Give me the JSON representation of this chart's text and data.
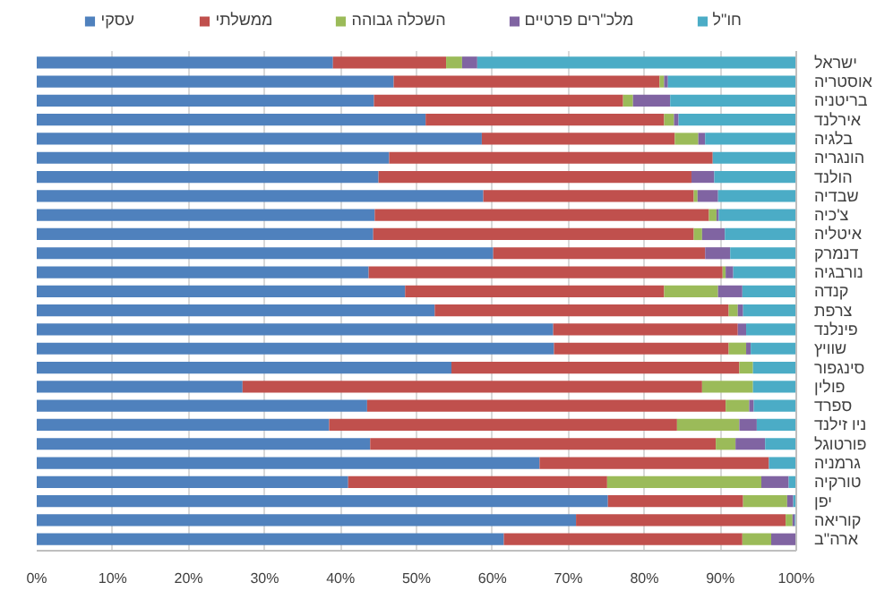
{
  "chart_data": {
    "type": "bar",
    "orientation": "horizontal",
    "stacked": true,
    "categories": [
      "ישראל",
      "אוסטריה",
      "בריטניה",
      "אירלנד",
      "בלגיה",
      "הונגריה",
      "הולנד",
      "שבדיה",
      "צ'כיה",
      "איטליה",
      "דנמרק",
      "נורבגיה",
      "קנדה",
      "צרפת",
      "פינלנד",
      "שוויץ",
      "סינגפור",
      "פולין",
      "ספרד",
      "ניו זילנד",
      "פורטוגל",
      "גרמניה",
      "טורקיה",
      "יפן",
      "קוריאה",
      "ארה\"ב"
    ],
    "series": [
      {
        "name": "עסקי",
        "color": "#4f81bd",
        "values": [
          39.0,
          47.0,
          44.4,
          51.2,
          58.6,
          46.4,
          45.0,
          58.8,
          44.5,
          44.3,
          60.1,
          43.7,
          48.5,
          52.4,
          68.0,
          68.1,
          54.6,
          27.1,
          43.5,
          38.5,
          43.9,
          66.2,
          41.0,
          75.2,
          71.0,
          61.5
        ]
      },
      {
        "name": "ממשלתי",
        "color": "#c0504d",
        "values": [
          14.9,
          35.0,
          32.8,
          31.4,
          25.4,
          42.6,
          41.2,
          27.7,
          44.0,
          42.2,
          27.9,
          46.6,
          34.1,
          38.7,
          24.3,
          23.0,
          37.9,
          60.5,
          47.2,
          45.8,
          45.5,
          30.2,
          34.1,
          17.8,
          27.6,
          31.4
        ]
      },
      {
        "name": "השכלה גבוהה",
        "color": "#9bbb59",
        "values": [
          2.1,
          0.6,
          1.3,
          1.3,
          3.1,
          null,
          null,
          0.5,
          1.0,
          1.1,
          null,
          0.4,
          7.1,
          1.2,
          null,
          2.3,
          1.8,
          6.7,
          3.1,
          8.2,
          2.6,
          null,
          20.3,
          5.8,
          0.9,
          3.8
        ]
      },
      {
        "name": "מלכ\"רים פרטיים",
        "color": "#8064a2",
        "values": [
          2.0,
          0.5,
          4.9,
          0.6,
          0.9,
          null,
          3.0,
          2.7,
          0.3,
          3.0,
          3.3,
          1.0,
          3.2,
          0.7,
          1.1,
          0.6,
          null,
          null,
          0.6,
          2.3,
          3.9,
          null,
          3.6,
          0.8,
          0.3,
          3.3
        ]
      },
      {
        "name": "חו\"ל",
        "color": "#4bacc6",
        "values": [
          42.0,
          16.9,
          16.6,
          15.5,
          12.0,
          11.0,
          10.8,
          10.3,
          10.2,
          9.4,
          8.7,
          8.3,
          7.1,
          7.0,
          6.6,
          6.0,
          5.7,
          5.7,
          5.6,
          5.2,
          4.1,
          3.6,
          1.0,
          0.4,
          0.2,
          null
        ]
      }
    ],
    "xlim": [
      0,
      100
    ],
    "xticks": [
      {
        "value": 0,
        "label": "0%"
      },
      {
        "value": 10,
        "label": "10%"
      },
      {
        "value": 20,
        "label": "20%"
      },
      {
        "value": 30,
        "label": "30%"
      },
      {
        "value": 40,
        "label": "40%"
      },
      {
        "value": 50,
        "label": "50%"
      },
      {
        "value": 60,
        "label": "60%"
      },
      {
        "value": 70,
        "label": "70%"
      },
      {
        "value": 80,
        "label": "80%"
      },
      {
        "value": 90,
        "label": "90%"
      },
      {
        "value": 100,
        "label": "100%"
      }
    ],
    "grid": "x",
    "legend": "top"
  }
}
